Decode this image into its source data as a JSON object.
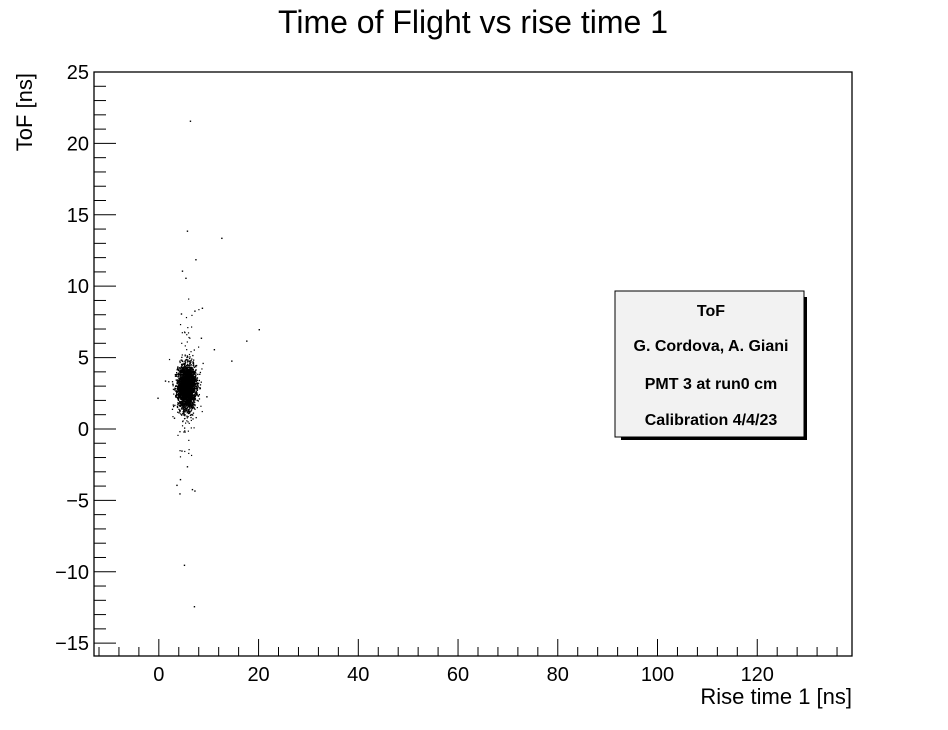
{
  "chart_data": {
    "type": "scatter",
    "title": "Time of Flight vs rise time 1",
    "xlabel": "Rise time 1 [ns]",
    "ylabel": "ToF [ns]",
    "xlim": [
      -13,
      139
    ],
    "ylim": [
      -15.9,
      25
    ],
    "x_ticks": [
      0,
      20,
      40,
      60,
      80,
      100,
      120
    ],
    "y_ticks": [
      -15,
      -10,
      -5,
      0,
      5,
      10,
      15,
      20,
      25
    ],
    "x_tick_labels": [
      "0",
      "20",
      "40",
      "60",
      "80",
      "100",
      "120"
    ],
    "y_tick_labels": [
      "−15",
      "−10",
      "−5",
      "0",
      "5",
      "10",
      "15",
      "20",
      "25"
    ],
    "grid": false,
    "marker_color": "#000000",
    "cluster": {
      "x_center": 5.5,
      "x_spread": 0.9,
      "y_center": 3.0,
      "y_spread": 0.75
    },
    "points": [
      {
        "x": 6.2,
        "y": 21.6
      },
      {
        "x": 5.6,
        "y": 13.9
      },
      {
        "x": 12.5,
        "y": 13.4
      },
      {
        "x": 7.3,
        "y": 11.9
      },
      {
        "x": 4.6,
        "y": 11.1
      },
      {
        "x": 5.3,
        "y": 10.6
      },
      {
        "x": 8.6,
        "y": 8.5
      },
      {
        "x": 4.4,
        "y": 8.1
      },
      {
        "x": 7.1,
        "y": 8.3
      },
      {
        "x": 20.0,
        "y": 7.0
      },
      {
        "x": 17.5,
        "y": 6.2
      },
      {
        "x": 14.5,
        "y": 4.8
      },
      {
        "x": 11.0,
        "y": 5.6
      },
      {
        "x": -0.3,
        "y": 2.2
      },
      {
        "x": 1.2,
        "y": 3.4
      },
      {
        "x": 4.5,
        "y": -1.5
      },
      {
        "x": 5.6,
        "y": -2.6
      },
      {
        "x": 4.2,
        "y": -3.5
      },
      {
        "x": 3.5,
        "y": -3.9
      },
      {
        "x": 7.1,
        "y": -4.3
      },
      {
        "x": 6.6,
        "y": -4.2
      },
      {
        "x": 4.1,
        "y": -4.5
      },
      {
        "x": 5.0,
        "y": -9.5
      },
      {
        "x": 7.0,
        "y": -12.4
      },
      {
        "x": 9.5,
        "y": 2.3
      },
      {
        "x": 3.0,
        "y": 0.8
      },
      {
        "x": 8.4,
        "y": 6.4
      }
    ],
    "legend": {
      "position": "right",
      "lines": [
        "ToF",
        "G. Cordova, A. Giani",
        "PMT 3 at run0 cm",
        "Calibration 4/4/23"
      ]
    }
  }
}
